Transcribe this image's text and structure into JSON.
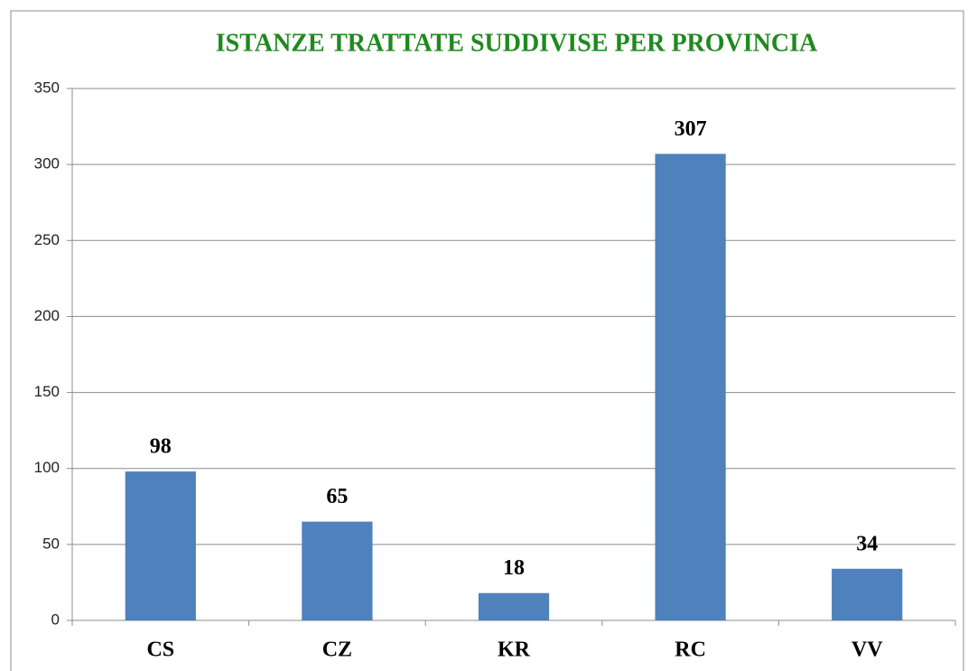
{
  "chart_data": {
    "type": "bar",
    "title": "ISTANZE  TRATTATE  SUDDIVISE  PER PROVINCIA",
    "categories": [
      "CS",
      "CZ",
      "KR",
      "RC",
      "VV"
    ],
    "values": [
      98,
      65,
      18,
      307,
      34
    ],
    "color": "#4f81bd",
    "ylim": [
      0,
      350
    ],
    "yticks": [
      0,
      50,
      100,
      150,
      200,
      250,
      300,
      350
    ],
    "grid": true
  }
}
